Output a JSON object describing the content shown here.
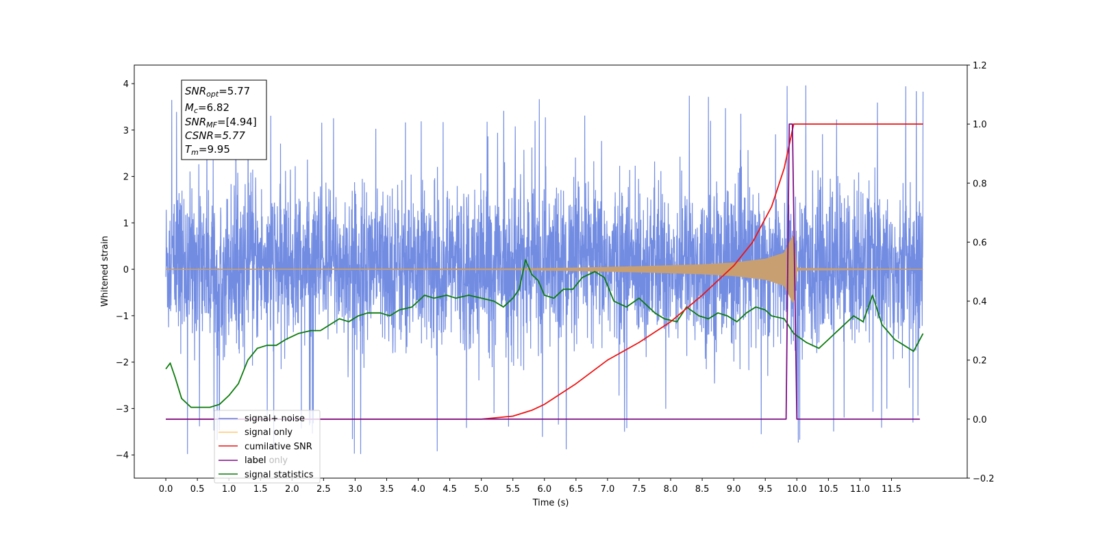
{
  "chart_data": {
    "type": "line",
    "xlabel": "Time (s)",
    "ylabel_left": "Whitened strain",
    "ylabel_right": "",
    "xlim": [
      -0.5,
      12.7
    ],
    "ylim_left": [
      -4.5,
      4.4
    ],
    "ylim_right": [
      -0.2,
      1.2
    ],
    "x_ticks": [
      0.0,
      0.5,
      1.0,
      1.5,
      2.0,
      2.5,
      3.0,
      3.5,
      4.0,
      4.5,
      5.0,
      5.5,
      6.0,
      6.5,
      7.0,
      7.5,
      8.0,
      8.5,
      9.0,
      9.5,
      10.0,
      10.5,
      11.0,
      11.5
    ],
    "x_tick_labels": [
      "0.0",
      "0.5",
      "1.0",
      "1.5",
      "2.0",
      "2.5",
      "3.0",
      "3.5",
      "4.0",
      "4.5",
      "5.0",
      "5.5",
      "6.0",
      "6.5",
      "7.0",
      "7.5",
      "8.0",
      "8.5",
      "9.0",
      "9.5",
      "10.0",
      "10.5",
      "11.0",
      "11.5"
    ],
    "y_left_ticks": [
      4,
      3,
      2,
      1,
      0,
      -1,
      -2,
      -3,
      -4
    ],
    "y_left_tick_labels": [
      "4",
      "3",
      "2",
      "1",
      "0",
      "−1",
      "−2",
      "−3",
      "−4"
    ],
    "y_right_ticks": [
      1.2,
      1.0,
      0.8,
      0.6,
      0.4,
      0.2,
      0.0,
      -0.2
    ],
    "y_right_tick_labels": [
      "1.2",
      "1.0",
      "0.8",
      "0.6",
      "0.4",
      "0.2",
      "0.0",
      "−0.2"
    ],
    "grid": false,
    "legend_position": "lower-left",
    "info_box": {
      "snr_opt": "=5.77",
      "mc": "=6.82",
      "snr_mf": "=[4.94]",
      "csnr": "CSNR=5.77",
      "tm": "=9.95"
    },
    "series": [
      {
        "name": "signal+ noise",
        "axis": "left",
        "color": "#6a86e0",
        "kind": "noise-band",
        "x_range": [
          0.0,
          12.0
        ],
        "typical_envelope": [
          -1.9,
          2.3
        ],
        "extremes": [
          -4.0,
          4.0
        ]
      },
      {
        "name": "signal only",
        "axis": "left",
        "color": "#c89f70",
        "kind": "chirp",
        "x_range": [
          0.0,
          12.0
        ],
        "amplitude": {
          "x": [
            0.0,
            5.5,
            6.5,
            7.5,
            8.5,
            9.0,
            9.5,
            9.8,
            9.95,
            10.0,
            12.0
          ],
          "y": [
            0.0,
            0.01,
            0.03,
            0.06,
            0.1,
            0.14,
            0.22,
            0.35,
            0.75,
            0.02,
            0.0
          ]
        }
      },
      {
        "name": "cumilative SNR",
        "axis": "right",
        "color": "#ee1111",
        "x": [
          0.0,
          5.0,
          5.5,
          5.8,
          6.0,
          6.5,
          7.0,
          7.5,
          8.0,
          8.5,
          9.0,
          9.3,
          9.6,
          9.8,
          9.95,
          10.0,
          12.0
        ],
        "values": [
          0.0,
          0.0,
          0.01,
          0.03,
          0.05,
          0.12,
          0.2,
          0.26,
          0.33,
          0.42,
          0.52,
          0.6,
          0.72,
          0.85,
          1.0,
          1.0,
          1.0
        ]
      },
      {
        "name": "label",
        "axis": "right",
        "color": "#7b0d84",
        "x": [
          0.0,
          9.83,
          9.88,
          9.93,
          10.0,
          11.95
        ],
        "values": [
          0.0,
          0.0,
          1.0,
          1.0,
          0.0,
          0.0
        ]
      },
      {
        "name": "label only",
        "axis": "right",
        "color": "#bbbbbb",
        "hidden_behind_legend": true
      },
      {
        "name": "signal statistics",
        "axis": "right",
        "color": "#0a7a0a",
        "x": [
          0.0,
          0.07,
          0.15,
          0.25,
          0.4,
          0.55,
          0.7,
          0.85,
          1.0,
          1.15,
          1.3,
          1.45,
          1.6,
          1.75,
          1.9,
          2.1,
          2.3,
          2.45,
          2.6,
          2.75,
          2.9,
          3.05,
          3.2,
          3.4,
          3.55,
          3.7,
          3.9,
          4.1,
          4.25,
          4.45,
          4.6,
          4.8,
          5.0,
          5.2,
          5.35,
          5.5,
          5.6,
          5.7,
          5.8,
          5.9,
          6.0,
          6.15,
          6.3,
          6.45,
          6.6,
          6.8,
          6.95,
          7.1,
          7.3,
          7.5,
          7.75,
          7.9,
          8.1,
          8.25,
          8.45,
          8.6,
          8.75,
          8.9,
          9.05,
          9.2,
          9.35,
          9.5,
          9.6,
          9.8,
          9.95,
          10.15,
          10.35,
          10.5,
          10.7,
          10.9,
          11.05,
          11.2,
          11.35,
          11.55,
          11.7,
          11.85,
          12.0
        ],
        "values": [
          0.17,
          0.19,
          0.14,
          0.07,
          0.04,
          0.04,
          0.04,
          0.05,
          0.08,
          0.12,
          0.2,
          0.24,
          0.25,
          0.25,
          0.27,
          0.29,
          0.3,
          0.3,
          0.32,
          0.34,
          0.33,
          0.35,
          0.36,
          0.36,
          0.35,
          0.37,
          0.38,
          0.42,
          0.41,
          0.42,
          0.41,
          0.42,
          0.41,
          0.4,
          0.38,
          0.41,
          0.44,
          0.54,
          0.49,
          0.47,
          0.42,
          0.41,
          0.44,
          0.44,
          0.48,
          0.5,
          0.48,
          0.4,
          0.38,
          0.41,
          0.36,
          0.34,
          0.33,
          0.38,
          0.35,
          0.34,
          0.36,
          0.35,
          0.33,
          0.36,
          0.38,
          0.37,
          0.35,
          0.34,
          0.29,
          0.26,
          0.24,
          0.27,
          0.31,
          0.35,
          0.33,
          0.42,
          0.32,
          0.27,
          0.25,
          0.23,
          0.29
        ]
      }
    ]
  }
}
